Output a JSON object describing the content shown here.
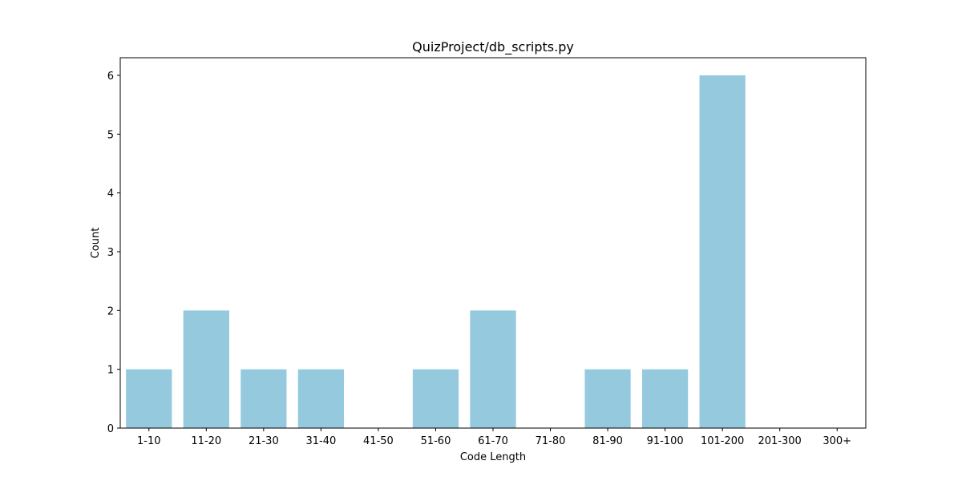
{
  "chart_data": {
    "type": "bar",
    "title": "QuizProject/db_scripts.py",
    "xlabel": "Code Length",
    "ylabel": "Count",
    "categories": [
      "1-10",
      "11-20",
      "21-30",
      "31-40",
      "41-50",
      "51-60",
      "61-70",
      "71-80",
      "81-90",
      "91-100",
      "101-200",
      "201-300",
      "300+"
    ],
    "values": [
      1,
      2,
      1,
      1,
      0,
      1,
      2,
      0,
      1,
      1,
      6,
      0,
      0
    ],
    "ylim": [
      0,
      6.3
    ],
    "yticks": [
      0,
      1,
      2,
      3,
      4,
      5,
      6
    ],
    "bar_color": "#95c9de",
    "grid": false,
    "legend": "none"
  }
}
